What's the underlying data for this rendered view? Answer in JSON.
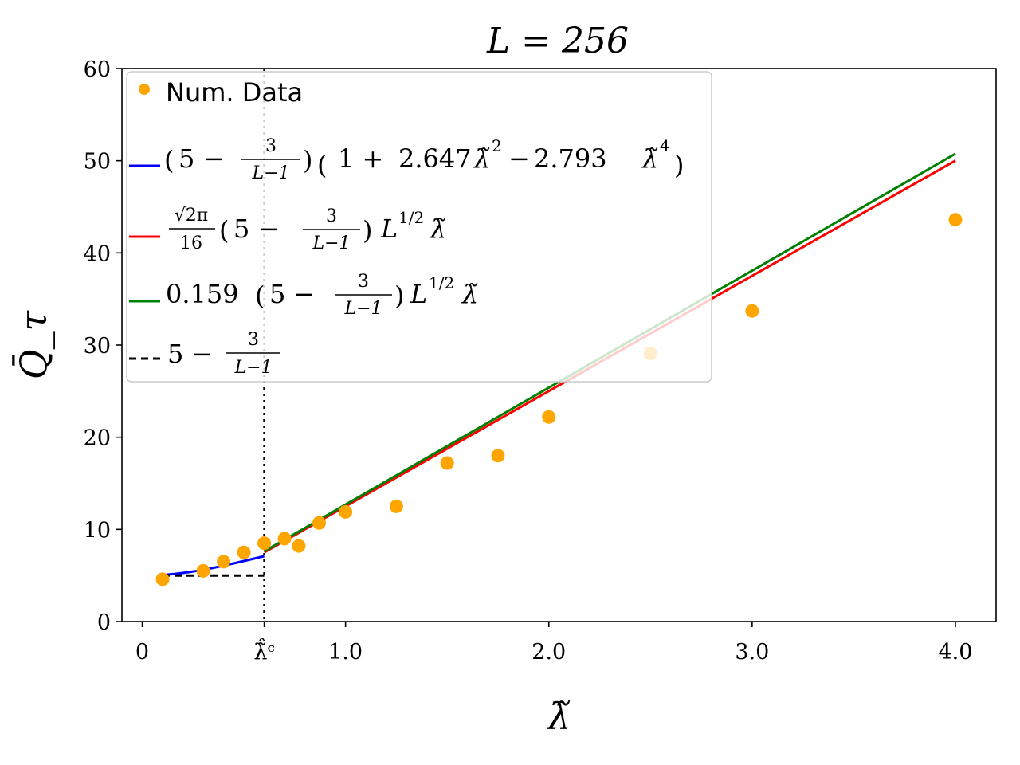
{
  "chart_data": {
    "type": "scatter",
    "title": "L = 256",
    "xlabel": "λ̃",
    "ylabel": "Q̄_τ",
    "xlim": [
      -0.1,
      4.2
    ],
    "ylim": [
      0,
      60
    ],
    "x_ticks": [
      {
        "value": 0,
        "label": "0"
      },
      {
        "value": 0.6,
        "label": "λ̃̂ᶜ"
      },
      {
        "value": 1.0,
        "label": "1.0"
      },
      {
        "value": 2.0,
        "label": "2.0"
      },
      {
        "value": 3.0,
        "label": "3.0"
      },
      {
        "value": 4.0,
        "label": "4.0"
      }
    ],
    "y_ticks": [
      0,
      10,
      20,
      30,
      40,
      50,
      60
    ],
    "critical_x": 0.6,
    "grid": false,
    "legend_position": "upper-left",
    "series": [
      {
        "name": "Num. Data",
        "kind": "points",
        "color": "#FFA500",
        "x": [
          0.1,
          0.3,
          0.4,
          0.5,
          0.6,
          0.7,
          0.77,
          0.87,
          1.0,
          1.25,
          1.5,
          1.75,
          2.0,
          2.5,
          3.0,
          4.0
        ],
        "y": [
          4.6,
          5.5,
          6.5,
          7.5,
          8.5,
          9.0,
          8.2,
          10.7,
          11.9,
          12.5,
          17.2,
          18.0,
          22.2,
          29.1,
          33.7,
          43.6
        ]
      },
      {
        "name": "(5 − 3/(L−1)) (1 + 2.647 λ̃² − 2.793 λ̃⁴)",
        "kind": "line",
        "color": "#0000FF",
        "formula": "poly",
        "coefficients": {
          "a2": 2.647,
          "a4": 2.793
        },
        "domain": [
          0.1,
          0.6
        ]
      },
      {
        "name": "√(2π)/16 (5 − 3/(L−1)) L^{1/2} λ̃",
        "kind": "line",
        "color": "#FF0000",
        "formula": "linear",
        "slope_coefficient": 0.15666,
        "domain": [
          0.6,
          4.0
        ]
      },
      {
        "name": "0.159 (5 − 3/(L−1)) L^{1/2} λ̃",
        "kind": "line",
        "color": "#008000",
        "formula": "linear",
        "slope_coefficient": 0.159,
        "domain": [
          0.6,
          4.0
        ]
      },
      {
        "name": "5 − 3/(L−1)",
        "kind": "dashed",
        "color": "#000000",
        "formula": "constant",
        "domain": [
          0.1,
          0.6
        ]
      }
    ],
    "L": 256
  },
  "legend": {
    "num_data": "Num. Data",
    "poly": {
      "coef1": "2.647",
      "coef2": "2.793"
    },
    "red": {
      "num": "√2π",
      "den": "16"
    },
    "green": {
      "coef": "0.159"
    },
    "common": {
      "five": "5 −",
      "frac_num": "3",
      "frac_den": "L−1"
    }
  }
}
